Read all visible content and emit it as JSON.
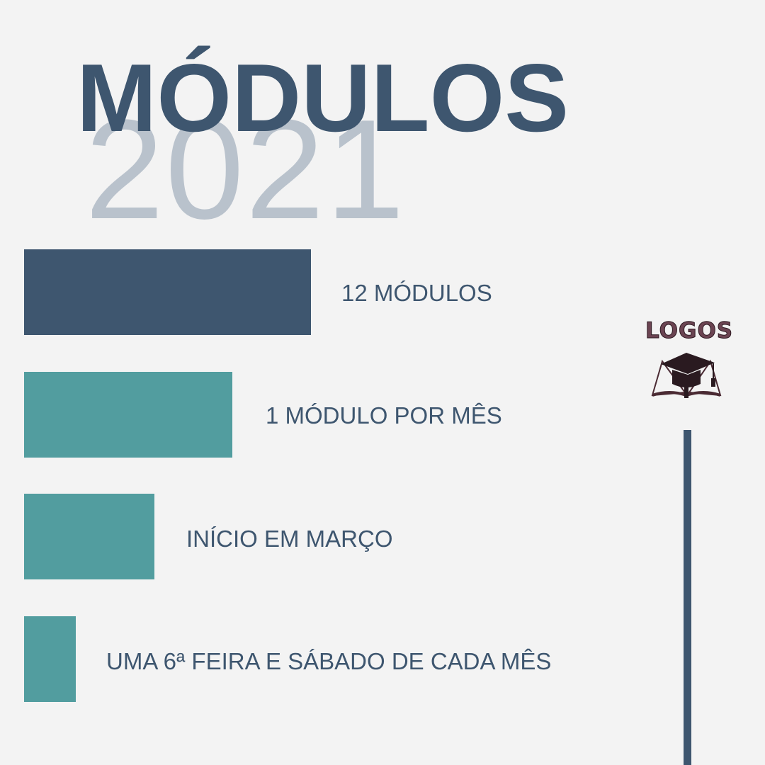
{
  "header": {
    "title": "MÓDULOS",
    "year": "2021"
  },
  "colors": {
    "background": "#f3f3f3",
    "primary_navy": "#3e566f",
    "teal": "#529d9f",
    "year_gray": "#b9c2cc",
    "logo_brown": "#6b4452"
  },
  "items": [
    {
      "label": "12 MÓDULOS",
      "color": "#3e566f"
    },
    {
      "label": "1 MÓDULO POR MÊS",
      "color": "#529d9f"
    },
    {
      "label": "INÍCIO EM MARÇO",
      "color": "#529d9f"
    },
    {
      "label": "UMA 6ª FEIRA E SÁBADO DE CADA MÊS",
      "color": "#529d9f"
    }
  ],
  "logo": {
    "text": "LOGOS",
    "icon": "graduation-cap-book-icon"
  }
}
